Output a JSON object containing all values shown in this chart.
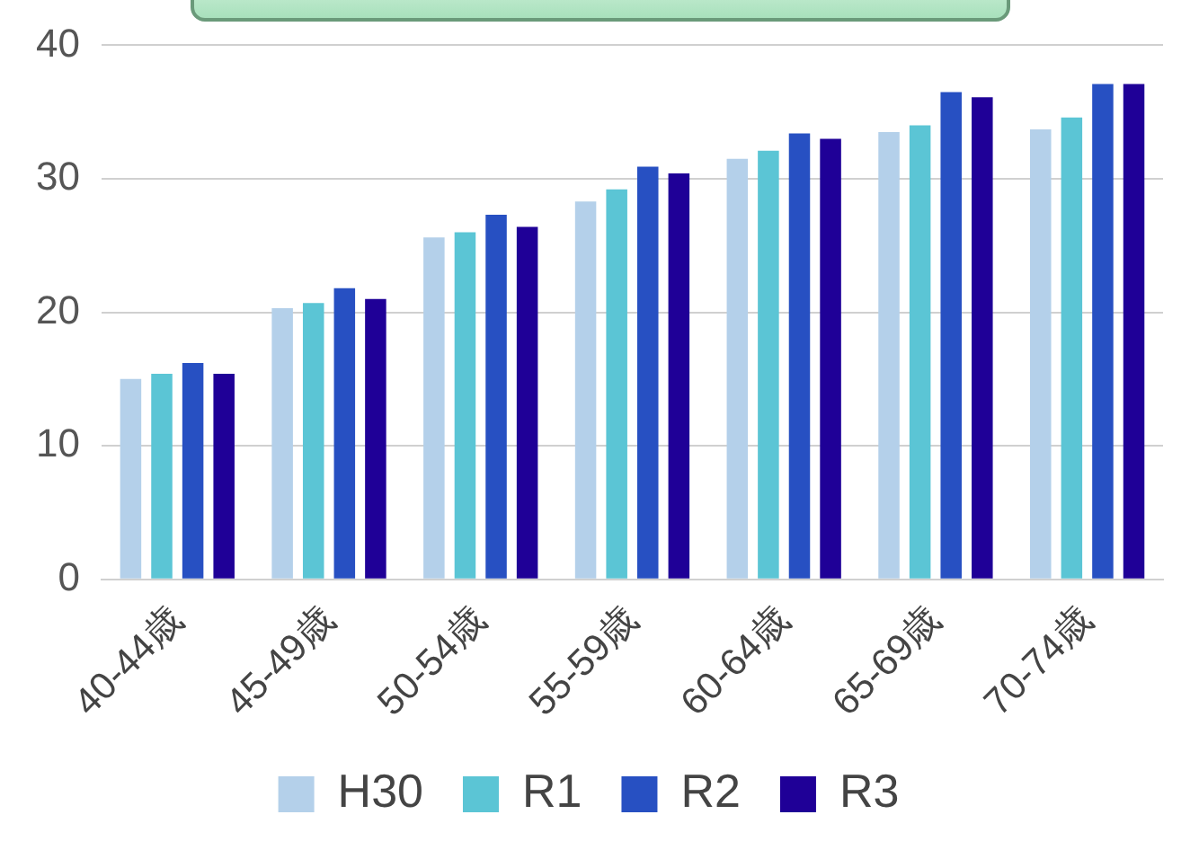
{
  "chart_data": {
    "type": "bar",
    "categories": [
      "40-44歳",
      "45-49歳",
      "50-54歳",
      "55-59歳",
      "60-64歳",
      "65-69歳",
      "70-74歳"
    ],
    "series": [
      {
        "name": "H30",
        "color": "#b4d0ea",
        "values": [
          15.0,
          20.3,
          25.6,
          28.3,
          31.5,
          33.5,
          33.7
        ]
      },
      {
        "name": "R1",
        "color": "#5bc5d5",
        "values": [
          15.4,
          20.7,
          26.0,
          29.2,
          32.1,
          34.0,
          34.6
        ]
      },
      {
        "name": "R2",
        "color": "#2750c2",
        "values": [
          16.2,
          21.8,
          27.3,
          30.9,
          33.4,
          36.5,
          37.1
        ]
      },
      {
        "name": "R3",
        "color": "#1f0097",
        "values": [
          15.4,
          21.0,
          26.4,
          30.4,
          33.0,
          36.1,
          37.1
        ]
      }
    ],
    "ylim": [
      0,
      40
    ],
    "yticks": [
      0,
      10,
      20,
      30,
      40
    ],
    "grid": "y",
    "legend": "bottom"
  }
}
